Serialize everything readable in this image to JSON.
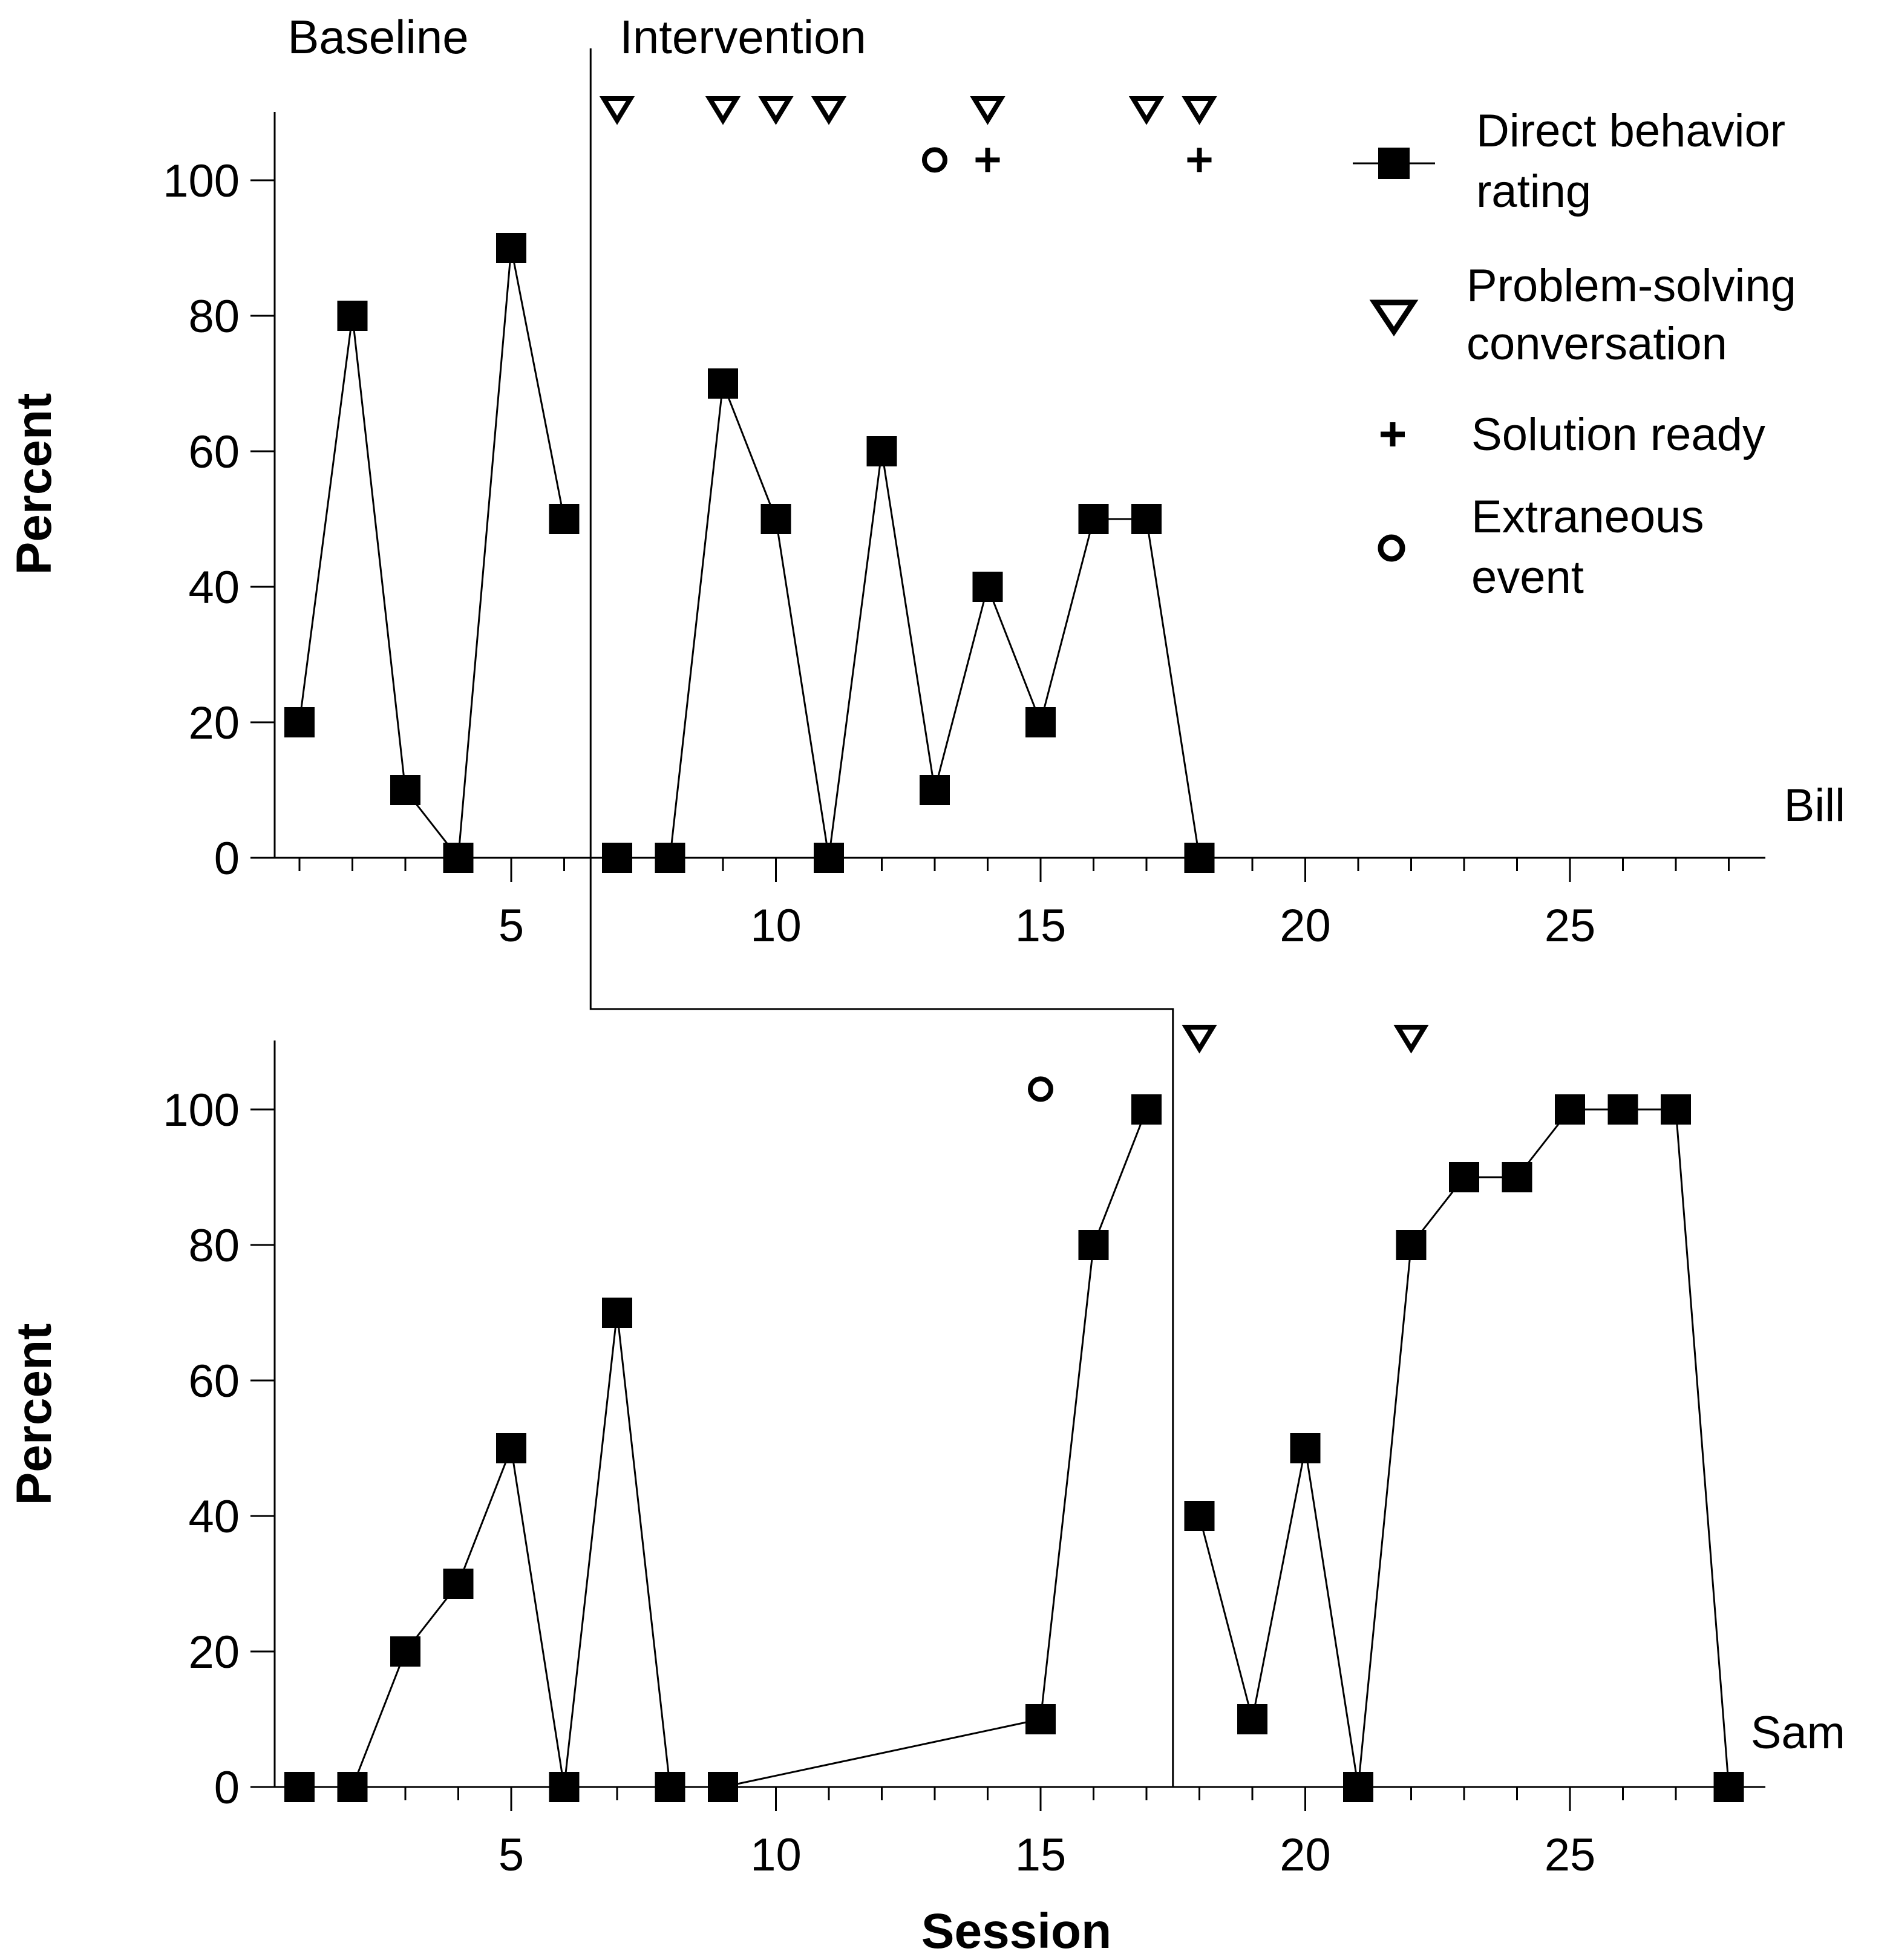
{
  "chart_data": [
    {
      "type": "line",
      "participant": "Bill",
      "phase_labels": [
        "Baseline",
        "Intervention"
      ],
      "phase_change_after_session": 6,
      "xlabel": "",
      "ylabel": "Percent",
      "xlim": [
        0.5,
        28.5
      ],
      "ylim": [
        0,
        110
      ],
      "x_ticks": [
        5,
        10,
        15,
        20,
        25
      ],
      "y_ticks": [
        0,
        20,
        40,
        60,
        80,
        100
      ],
      "series": [
        {
          "name": "Direct behavior rating",
          "segments": [
            {
              "x": [
                1,
                2,
                3,
                4,
                5,
                6
              ],
              "y": [
                20,
                80,
                10,
                0,
                90,
                50
              ]
            },
            {
              "x": [
                7,
                8,
                9,
                10,
                11,
                12,
                13,
                14,
                15,
                16,
                17,
                18
              ],
              "y": [
                0,
                0,
                70,
                50,
                0,
                60,
                10,
                40,
                20,
                50,
                50,
                0
              ]
            }
          ]
        }
      ],
      "problem_solving_conversation": [
        7,
        9,
        10,
        11,
        14,
        17,
        18
      ],
      "solution_ready": [
        14,
        18
      ],
      "extraneous_event": [
        13
      ]
    },
    {
      "type": "line",
      "participant": "Sam",
      "phase_change_after_session": 17,
      "xlabel": "Session",
      "ylabel": "Percent",
      "xlim": [
        0.5,
        28.5
      ],
      "ylim": [
        0,
        110
      ],
      "x_ticks": [
        5,
        10,
        15,
        20,
        25
      ],
      "y_ticks": [
        0,
        20,
        40,
        60,
        80,
        100
      ],
      "series": [
        {
          "name": "Direct behavior rating",
          "segments": [
            {
              "x": [
                1,
                2,
                3,
                4,
                5,
                6,
                7,
                8,
                9,
                15,
                16,
                17
              ],
              "y": [
                0,
                0,
                20,
                30,
                50,
                0,
                70,
                0,
                0,
                10,
                80,
                100
              ]
            },
            {
              "x": [
                18,
                19,
                20,
                21,
                22,
                23,
                24,
                25,
                26,
                27,
                28
              ],
              "y": [
                40,
                10,
                50,
                0,
                80,
                90,
                90,
                100,
                100,
                100,
                0
              ]
            }
          ]
        }
      ],
      "problem_solving_conversation": [
        18,
        22
      ],
      "solution_ready": [],
      "extraneous_event": [
        15
      ]
    }
  ],
  "legend": [
    {
      "key": "dbr",
      "lines": [
        "Direct behavior",
        "rating"
      ]
    },
    {
      "key": "psc",
      "lines": [
        "Problem-solving",
        "conversation"
      ]
    },
    {
      "key": "sol",
      "lines": [
        "Solution ready"
      ]
    },
    {
      "key": "ext",
      "lines": [
        "Extraneous",
        "event"
      ]
    }
  ]
}
